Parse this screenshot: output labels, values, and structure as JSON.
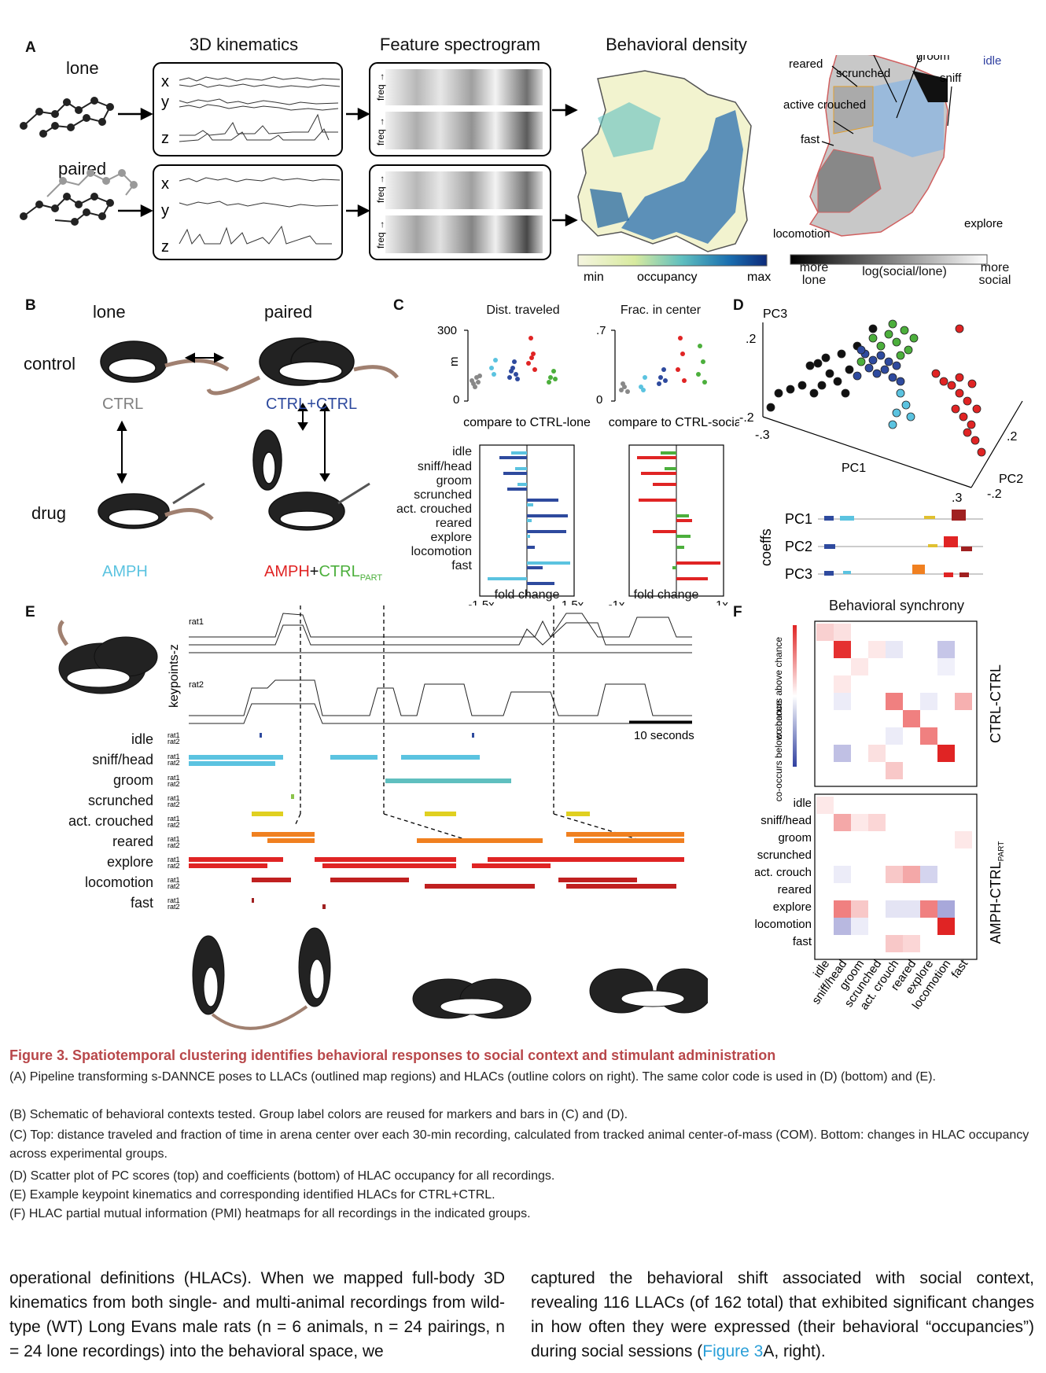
{
  "panels": [
    "A",
    "B",
    "C",
    "D",
    "E",
    "F"
  ],
  "panelA": {
    "headers": [
      "3D kinematics",
      "Feature spectrogram",
      "Behavioral density"
    ],
    "rows": [
      "lone",
      "paired"
    ],
    "axes_xyz": [
      "x",
      "y",
      "z"
    ],
    "freq_label": "freq →",
    "density_scale": {
      "min": "min",
      "label": "occupancy",
      "max": "max"
    },
    "social_map_labels": [
      "scrunched",
      "groom",
      "idle",
      "reared",
      "sniff",
      "active crouched",
      "fast",
      "locomotion",
      "explore"
    ],
    "social_scale": {
      "left": "more lone",
      "center": "log(social/lone)",
      "right": "more social"
    }
  },
  "panelB": {
    "col_lone": "lone",
    "col_paired": "paired",
    "row_control": "control",
    "row_drug": "drug",
    "groups": [
      {
        "label": "CTRL",
        "color": "#808080"
      },
      {
        "label": "CTRL+CTRL",
        "color": "#2e4a9e"
      },
      {
        "label": "AMPH",
        "color": "#5bc3e0"
      },
      {
        "label_a": "AMPH",
        "label_plus": "+",
        "label_b": "CTRL",
        "label_sub": "PART",
        "color_a": "#e02424",
        "color_b": "#4caf3c"
      }
    ]
  },
  "panelC": {
    "top_left_title": "Dist. traveled",
    "top_right_title": "Frac. in center",
    "left_yticks": [
      "300",
      "0"
    ],
    "left_ylabel": "m",
    "right_yticks": [
      ".7",
      "0"
    ],
    "compare_left": "compare to CTRL-lone",
    "compare_right": "compare to CTRL-social",
    "categories": [
      "idle",
      "sniff/head",
      "groom",
      "scrunched",
      "act. crouched",
      "reared",
      "explore",
      "locomotion",
      "fast"
    ],
    "left_xticks": [
      "-1.5x",
      "1.5x"
    ],
    "right_xticks": [
      "-1x",
      "1x"
    ],
    "xlabel": "fold change"
  },
  "panelD": {
    "axes": [
      "PC3",
      "PC1",
      "PC2"
    ],
    "ticks": [
      ".2",
      "-.2",
      "-.3",
      ".3",
      ".2",
      "-.2"
    ],
    "coeffs_label": "coeffs",
    "coeff_rows": [
      "PC1",
      "PC2",
      "PC3"
    ]
  },
  "panelE": {
    "rat1": "rat1",
    "rat2": "rat2",
    "ylabel": "keypoints-z",
    "scalebar": "10 seconds",
    "behaviors": [
      "idle",
      "sniff/head",
      "groom",
      "scrunched",
      "act. crouched",
      "reared",
      "explore",
      "locomotion",
      "fast"
    ]
  },
  "panelF": {
    "title": "Behavioral synchrony",
    "cbar_top": "co-occurs above chance",
    "cbar_bottom": "co-occurs below chance",
    "group_top": "CTRL-CTRL",
    "group_bottom": "AMPH-CTRL",
    "group_bottom_sub": "PART",
    "row_labels": [
      "idle",
      "sniff/head",
      "groom",
      "scrunched",
      "act. crouch",
      "reared",
      "explore",
      "locomotion",
      "fast"
    ],
    "col_labels": [
      "idle",
      "sniff/head",
      "groom",
      "scrunched",
      "act. crouch",
      "reared",
      "explore",
      "locomotion",
      "fast"
    ]
  },
  "caption": {
    "title": "Figure 3.  Spatiotemporal clustering identifies behavioral responses to social context and stimulant administration",
    "lines": [
      "(A) Pipeline transforming s-DANNCE poses to LLACs (outlined map regions) and HLACs (outline colors on right). The same color code is used in (D) (bottom) and (E).",
      "(B) Schematic of behavioral contexts tested. Group label colors are reused for markers and bars in (C) and (D).",
      "(C) Top: distance traveled and fraction of time in arena center over each 30-min recording, calculated from tracked animal center-of-mass (COM). Bottom: changes in HLAC occupancy across experimental groups.",
      "(D) Scatter plot of PC scores (top) and coefficients (bottom) of HLAC occupancy for all recordings.",
      "(E) Example keypoint kinematics and corresponding identified HLACs for CTRL+CTRL.",
      "(F) HLAC partial mutual information (PMI) heatmaps for all recordings in the indicated groups."
    ]
  },
  "body": {
    "left": "operational definitions (HLACs). When we mapped full-body 3D kinematics from both single- and multi-animal recordings from wild-type (WT) Long Evans male rats (n = 6 animals, n = 24 pairings, n = 24 lone recordings) into the behavioral space, we",
    "right_a": "captured the behavioral shift associated with social context, revealing 116 LLACs (of 162 total) that exhibited significant changes in how often they were expressed (their behavioral “occupancies”) during social sessions (",
    "right_link": "Figure 3",
    "right_b": "A, right)."
  }
}
